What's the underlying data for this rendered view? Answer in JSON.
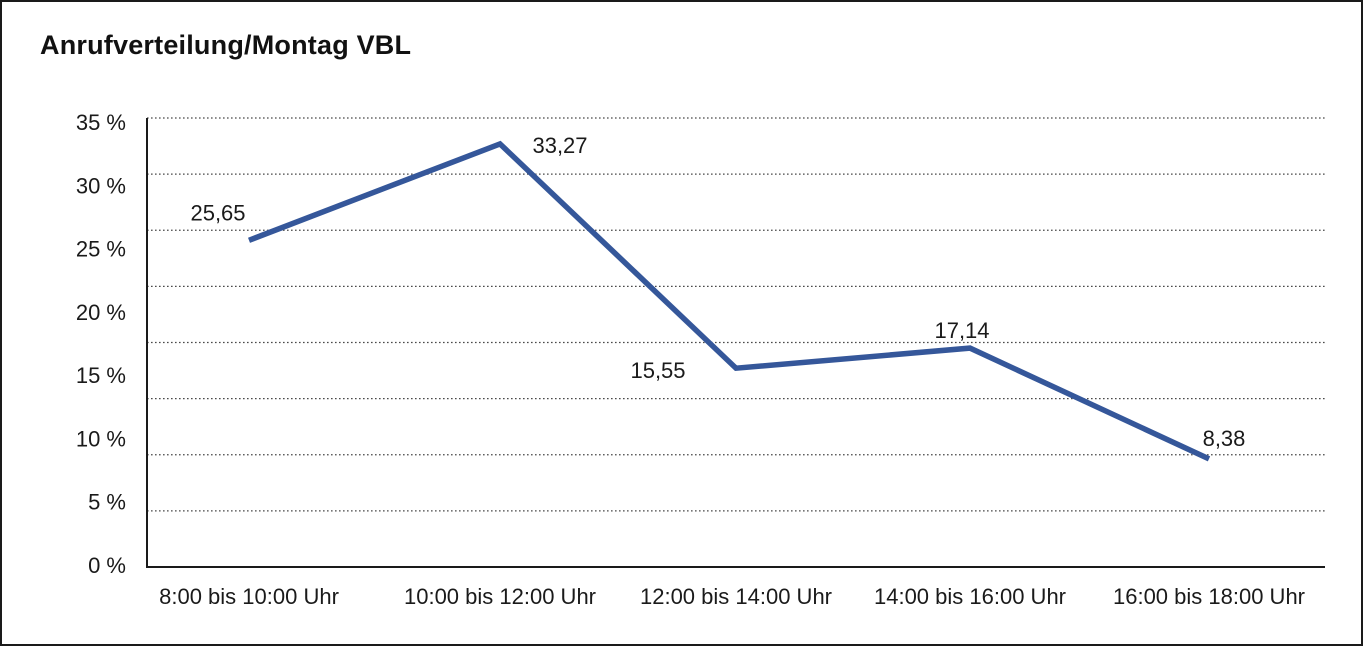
{
  "chart_data": {
    "type": "line",
    "title": "Anrufverteilung/Montag VBL",
    "categories": [
      "8:00 bis 10:00 Uhr",
      "10:00 bis 12:00 Uhr",
      "12:00 bis 14:00 Uhr",
      "14:00 bis 16:00 Uhr",
      "16:00 bis 18:00 Uhr"
    ],
    "values": [
      25.65,
      33.27,
      15.55,
      17.14,
      8.38
    ],
    "value_labels": [
      "25,65",
      "33,27",
      "15,55",
      "17,14",
      "8,38"
    ],
    "y_tick_labels": [
      "35 %",
      "30 %",
      "25 %",
      "20 %",
      "15 %",
      "10 %",
      "5 %",
      "0 %"
    ],
    "ylim": [
      0,
      35
    ],
    "y_tick_step": 5,
    "xlabel": "",
    "ylabel": "",
    "legend": "none",
    "grid": "horizontal-dotted",
    "line_color": "#35579A",
    "grid_color": "#4a4a4a",
    "axis_color": "#1a1a1a",
    "text_color": "#1a1a1a",
    "background_color": "#ffffff"
  }
}
